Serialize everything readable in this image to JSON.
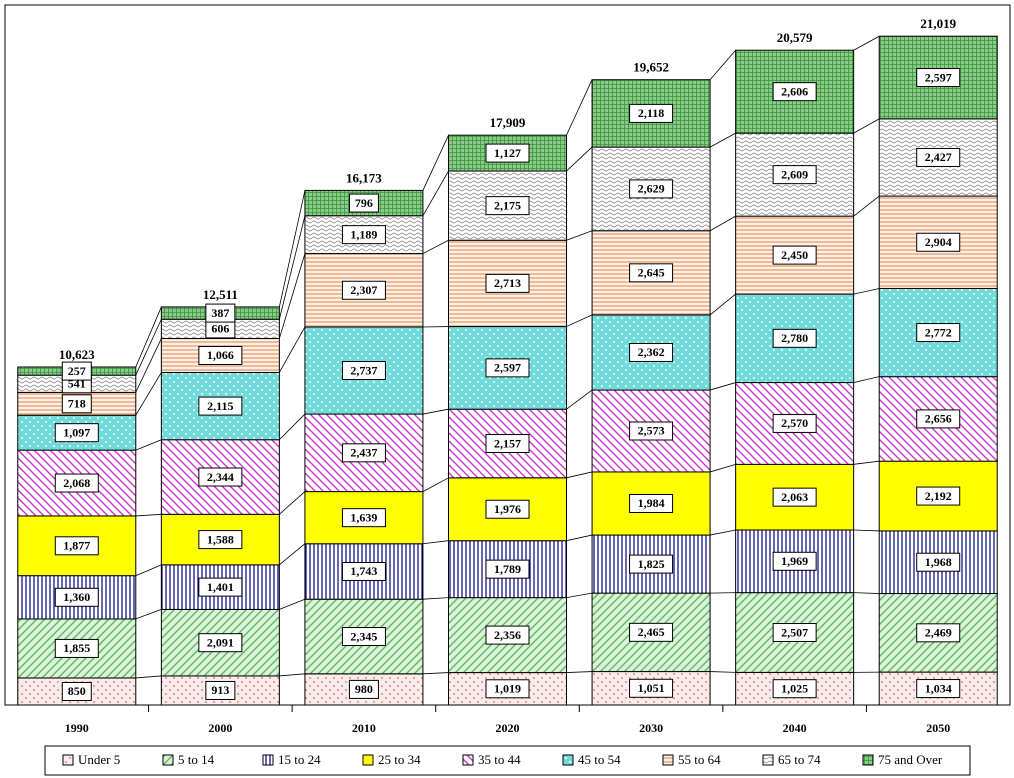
{
  "chart_data": {
    "type": "stacked_bar",
    "categories": [
      "1990",
      "2000",
      "2010",
      "2020",
      "2030",
      "2040",
      "2050"
    ],
    "ylim": [
      0,
      22000
    ],
    "series": [
      {
        "name": "Under 5",
        "color": "#e06666",
        "values": [
          850,
          913,
          980,
          1019,
          1051,
          1025,
          1034
        ],
        "value_labels": [
          "850",
          "913",
          "980",
          "1,019",
          "1,051",
          "1,025",
          "1,034"
        ]
      },
      {
        "name": "5 to 14",
        "color": "#55bb55",
        "values": [
          1855,
          2091,
          2345,
          2356,
          2465,
          2507,
          2469
        ],
        "value_labels": [
          "1,855",
          "2,091",
          "2,345",
          "2,356",
          "2,465",
          "2,507",
          "2,469"
        ]
      },
      {
        "name": "15 to 24",
        "color": "#000080",
        "values": [
          1360,
          1401,
          1743,
          1789,
          1825,
          1969,
          1968
        ],
        "value_labels": [
          "1,360",
          "1,401",
          "1,743",
          "1,789",
          "1,825",
          "1,969",
          "1,968"
        ]
      },
      {
        "name": "25 to 34",
        "color": "#ffff00",
        "values": [
          1877,
          1588,
          1639,
          1976,
          1984,
          2063,
          2192
        ],
        "value_labels": [
          "1,877",
          "1,588",
          "1,639",
          "1,976",
          "1,984",
          "2,063",
          "2,192"
        ]
      },
      {
        "name": "35 to 44",
        "color": "#cc33cc",
        "values": [
          2068,
          2344,
          2437,
          2157,
          2573,
          2570,
          2656
        ],
        "value_labels": [
          "2,068",
          "2,344",
          "2,437",
          "2,157",
          "2,573",
          "2,570",
          "2,656"
        ]
      },
      {
        "name": "45 to 54",
        "color": "#33cccc",
        "values": [
          1097,
          2115,
          2737,
          2597,
          2362,
          2780,
          2772
        ],
        "value_labels": [
          "1,097",
          "2,115",
          "2,737",
          "2,597",
          "2,362",
          "2,780",
          "2,772"
        ]
      },
      {
        "name": "55 to 64",
        "color": "#e69966",
        "values": [
          718,
          1066,
          2307,
          2713,
          2645,
          2450,
          2904
        ],
        "value_labels": [
          "718",
          "1,066",
          "2,307",
          "2,713",
          "2,645",
          "2,450",
          "2,904"
        ]
      },
      {
        "name": "65 to 74",
        "color": "#808080",
        "values": [
          541,
          606,
          1189,
          2175,
          2629,
          2609,
          2427
        ],
        "value_labels": [
          "541",
          "606",
          "1,189",
          "2,175",
          "2,629",
          "2,609",
          "2,427"
        ]
      },
      {
        "name": "75 and Over",
        "color": "#339933",
        "values": [
          257,
          387,
          796,
          1127,
          2118,
          2606,
          2597
        ],
        "value_labels": [
          "257",
          "387",
          "796",
          "1,127",
          "2,118",
          "2,606",
          "2,597"
        ]
      }
    ],
    "totals": {
      "values": [
        10623,
        12511,
        16173,
        17909,
        19652,
        20579,
        21019
      ],
      "value_labels": [
        "10,623",
        "12,511",
        "16,173",
        "17,909",
        "19,652",
        "20,579",
        "21,019"
      ]
    }
  }
}
